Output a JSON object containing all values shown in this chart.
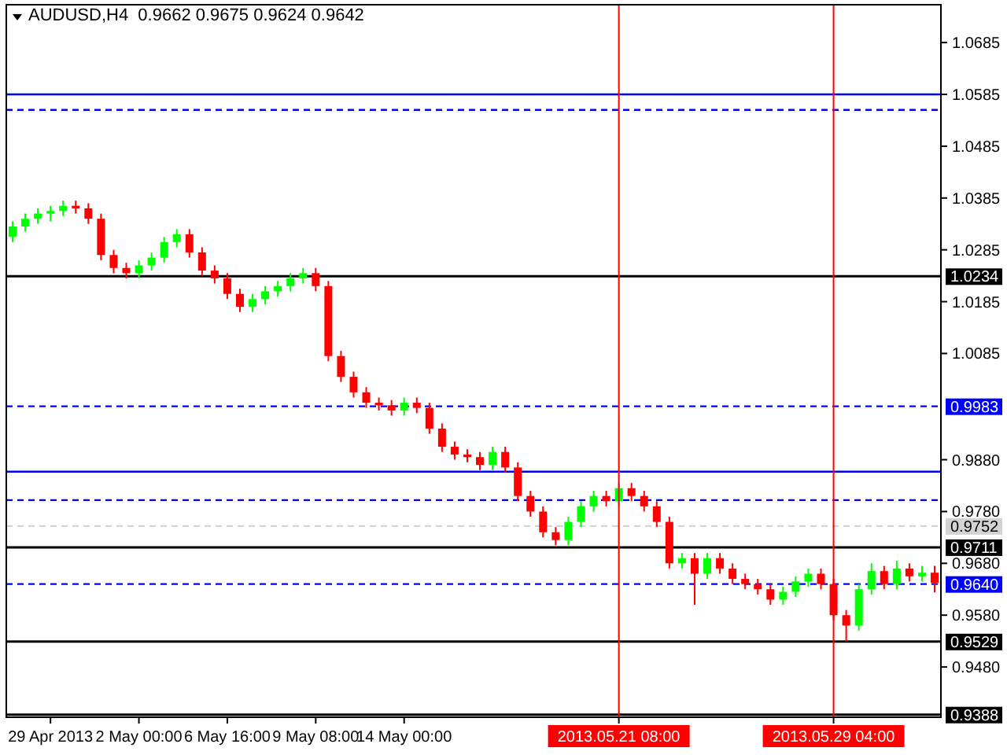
{
  "chart_data": {
    "type": "candlestick",
    "title": "AUDUSD,H4  0.9662 0.9675 0.9624 0.9642",
    "categories": [
      null,
      null,
      null,
      "29 Apr 2013",
      null,
      null,
      null,
      null,
      null,
      null,
      "2 May 00:00",
      null,
      null,
      null,
      null,
      null,
      null,
      "6 May 16:00",
      null,
      null,
      null,
      null,
      null,
      null,
      "9 May 08:00",
      null,
      null,
      null,
      null,
      null,
      null,
      "14 May 00:00",
      null,
      null,
      null,
      null,
      null,
      null,
      null,
      null,
      null,
      null,
      null,
      null,
      null,
      null,
      null,
      null,
      "2013.05.21 08:00",
      null,
      null,
      null,
      null,
      null,
      null,
      null,
      null,
      null,
      null,
      null,
      null,
      null,
      null,
      null,
      null,
      "2013.05.29 04:00",
      null,
      null,
      null,
      null,
      null,
      null,
      null,
      null
    ],
    "ohlc": [
      [
        1.031,
        1.034,
        1.03,
        1.033
      ],
      [
        1.033,
        1.0355,
        1.032,
        1.0345
      ],
      [
        1.0345,
        1.0365,
        1.0335,
        1.0355
      ],
      [
        1.0355,
        1.037,
        1.034,
        1.036
      ],
      [
        1.036,
        1.038,
        1.035,
        1.037
      ],
      [
        1.037,
        1.038,
        1.0355,
        1.0365
      ],
      [
        1.0365,
        1.0375,
        1.0335,
        1.0345
      ],
      [
        1.0345,
        1.0355,
        1.0265,
        1.0275
      ],
      [
        1.0275,
        1.0285,
        1.024,
        1.025
      ],
      [
        1.025,
        1.026,
        1.023,
        1.024
      ],
      [
        1.024,
        1.0265,
        1.023,
        1.0255
      ],
      [
        1.0255,
        1.028,
        1.0245,
        1.027
      ],
      [
        1.027,
        1.031,
        1.026,
        1.03
      ],
      [
        1.03,
        1.0325,
        1.029,
        1.0315
      ],
      [
        1.0315,
        1.0325,
        1.027,
        1.028
      ],
      [
        1.028,
        1.029,
        1.0235,
        1.0245
      ],
      [
        1.0245,
        1.0255,
        1.022,
        1.023
      ],
      [
        1.023,
        1.024,
        1.019,
        1.02
      ],
      [
        1.02,
        1.021,
        1.0165,
        1.0175
      ],
      [
        1.0175,
        1.02,
        1.0165,
        1.019
      ],
      [
        1.019,
        1.0215,
        1.018,
        1.0205
      ],
      [
        1.0205,
        1.0225,
        1.0195,
        1.0215
      ],
      [
        1.0215,
        1.024,
        1.0205,
        1.023
      ],
      [
        1.023,
        1.025,
        1.022,
        1.024
      ],
      [
        1.024,
        1.025,
        1.0205,
        1.0215
      ],
      [
        1.0215,
        1.0225,
        1.007,
        1.008
      ],
      [
        1.008,
        1.009,
        1.003,
        1.004
      ],
      [
        1.004,
        1.005,
        1.0,
        1.001
      ],
      [
        1.001,
        1.002,
        0.998,
        0.999
      ],
      [
        0.999,
        1.0,
        0.9975,
        0.9985
      ],
      [
        0.9985,
        0.9995,
        0.9965,
        0.9975
      ],
      [
        0.9975,
        1.0,
        0.9965,
        0.999
      ],
      [
        0.999,
        1.0,
        0.997,
        0.998
      ],
      [
        0.998,
        0.999,
        0.993,
        0.994
      ],
      [
        0.994,
        0.995,
        0.9895,
        0.9905
      ],
      [
        0.9905,
        0.9915,
        0.988,
        0.989
      ],
      [
        0.989,
        0.99,
        0.9875,
        0.9885
      ],
      [
        0.9885,
        0.9895,
        0.986,
        0.987
      ],
      [
        0.987,
        0.9905,
        0.986,
        0.9895
      ],
      [
        0.9895,
        0.9905,
        0.9855,
        0.9865
      ],
      [
        0.9865,
        0.9875,
        0.98,
        0.981
      ],
      [
        0.981,
        0.982,
        0.977,
        0.978
      ],
      [
        0.978,
        0.979,
        0.973,
        0.974
      ],
      [
        0.974,
        0.975,
        0.9715,
        0.9725
      ],
      [
        0.9725,
        0.977,
        0.9715,
        0.976
      ],
      [
        0.976,
        0.98,
        0.975,
        0.979
      ],
      [
        0.979,
        0.982,
        0.978,
        0.981
      ],
      [
        0.981,
        0.982,
        0.979,
        0.98
      ],
      [
        0.98,
        0.9835,
        0.979,
        0.9825
      ],
      [
        0.9825,
        0.9835,
        0.98,
        0.981
      ],
      [
        0.981,
        0.982,
        0.978,
        0.979
      ],
      [
        0.979,
        0.98,
        0.975,
        0.976
      ],
      [
        0.976,
        0.977,
        0.967,
        0.968
      ],
      [
        0.968,
        0.97,
        0.967,
        0.969
      ],
      [
        0.969,
        0.97,
        0.96,
        0.966
      ],
      [
        0.966,
        0.97,
        0.965,
        0.969
      ],
      [
        0.969,
        0.97,
        0.966,
        0.967
      ],
      [
        0.967,
        0.968,
        0.964,
        0.965
      ],
      [
        0.965,
        0.966,
        0.963,
        0.964
      ],
      [
        0.964,
        0.965,
        0.962,
        0.963
      ],
      [
        0.963,
        0.964,
        0.96,
        0.961
      ],
      [
        0.961,
        0.9635,
        0.96,
        0.9625
      ],
      [
        0.9625,
        0.9655,
        0.9615,
        0.9645
      ],
      [
        0.9645,
        0.967,
        0.9635,
        0.966
      ],
      [
        0.966,
        0.967,
        0.963,
        0.964
      ],
      [
        0.964,
        0.965,
        0.957,
        0.958
      ],
      [
        0.958,
        0.959,
        0.9529,
        0.956
      ],
      [
        0.956,
        0.964,
        0.955,
        0.963
      ],
      [
        0.963,
        0.968,
        0.962,
        0.9665
      ],
      [
        0.9665,
        0.9675,
        0.963,
        0.964
      ],
      [
        0.964,
        0.9685,
        0.963,
        0.967
      ],
      [
        0.967,
        0.968,
        0.9645,
        0.9655
      ],
      [
        0.9655,
        0.9675,
        0.9645,
        0.9662
      ],
      [
        0.9662,
        0.9675,
        0.9624,
        0.9642
      ]
    ],
    "colors": [
      "#00ff00",
      "#00ff00",
      "#00ff00",
      "#00ff00",
      "#00ff00",
      "#ff0000",
      "#ff0000",
      "#ff0000",
      "#ff0000",
      "#ff0000",
      "#00ff00",
      "#00ff00",
      "#00ff00",
      "#00ff00",
      "#ff0000",
      "#ff0000",
      "#ff0000",
      "#ff0000",
      "#ff0000",
      "#00ff00",
      "#00ff00",
      "#00ff00",
      "#00ff00",
      "#00ff00",
      "#ff0000",
      "#ff0000",
      "#ff0000",
      "#ff0000",
      "#ff0000",
      "#ff0000",
      "#ff0000",
      "#00ff00",
      "#ff0000",
      "#ff0000",
      "#ff0000",
      "#ff0000",
      "#ff0000",
      "#ff0000",
      "#00ff00",
      "#ff0000",
      "#ff0000",
      "#ff0000",
      "#ff0000",
      "#ff0000",
      "#00ff00",
      "#00ff00",
      "#00ff00",
      "#ff0000",
      "#00ff00",
      "#ff0000",
      "#ff0000",
      "#ff0000",
      "#ff0000",
      "#00ff00",
      "#ff0000",
      "#00ff00",
      "#ff0000",
      "#ff0000",
      "#ff0000",
      "#ff0000",
      "#ff0000",
      "#00ff00",
      "#00ff00",
      "#00ff00",
      "#ff0000",
      "#ff0000",
      "#ff0000",
      "#00ff00",
      "#00ff00",
      "#ff0000",
      "#00ff00",
      "#ff0000",
      "#00ff00",
      "#ff0000"
    ],
    "ylim": [
      0.9383,
      1.0758
    ],
    "yticks": [
      1.0685,
      1.0585,
      1.0485,
      1.0385,
      1.0285,
      1.0185,
      1.0085,
      {
        "value": 0.988,
        "label": "0.9880"
      },
      {
        "value": 0.978,
        "label": "0.9780"
      },
      {
        "value": 0.968,
        "label": "0.9680"
      },
      {
        "value": 0.958,
        "label": "0.9580"
      },
      {
        "value": 0.948,
        "label": "0.9480"
      }
    ],
    "ref_lines": [
      {
        "axis": "y",
        "value": 1.0234,
        "label": "1.0234",
        "color": "#000000",
        "line_style": "solid"
      },
      {
        "axis": "y",
        "value": 0.9983,
        "label": "0.9983",
        "color": "#0000ff",
        "line_style": "dashed"
      },
      {
        "axis": "y",
        "value": 0.9752,
        "label": "0.9752",
        "color": "#d3d3d3",
        "line_style": "dashed"
      },
      {
        "axis": "y",
        "value": 0.9711,
        "label": "0.9711",
        "color": "#000000",
        "line_style": "solid"
      },
      {
        "axis": "y",
        "value": 0.964,
        "label": "0.9640",
        "color": "#0000ff",
        "line_style": "dashed"
      },
      {
        "axis": "y",
        "value": 0.9529,
        "label": "0.9529",
        "color": "#000000",
        "line_style": "solid"
      },
      {
        "axis": "y",
        "value": 0.9388,
        "label": "0.9388",
        "color": "#000000",
        "line_style": "solid"
      },
      {
        "axis": "y",
        "value": 1.0585,
        "color": "#0000ff",
        "line_style": "solid"
      },
      {
        "axis": "y",
        "value": 1.0555,
        "color": "#0000ff",
        "line_style": "dashed"
      },
      {
        "axis": "y",
        "value": 0.9857,
        "color": "#0000ff",
        "line_style": "solid"
      },
      {
        "axis": "y",
        "value": 0.9802,
        "color": "#0000ff",
        "line_style": "dashed"
      },
      {
        "axis": "x",
        "value": "2013.05.21 08:00",
        "color": "#ff0000",
        "line_style": "solid"
      },
      {
        "axis": "x",
        "value": "2013.05.29 04:00",
        "color": "#ff0000",
        "line_style": "solid"
      }
    ],
    "grid": false
  }
}
